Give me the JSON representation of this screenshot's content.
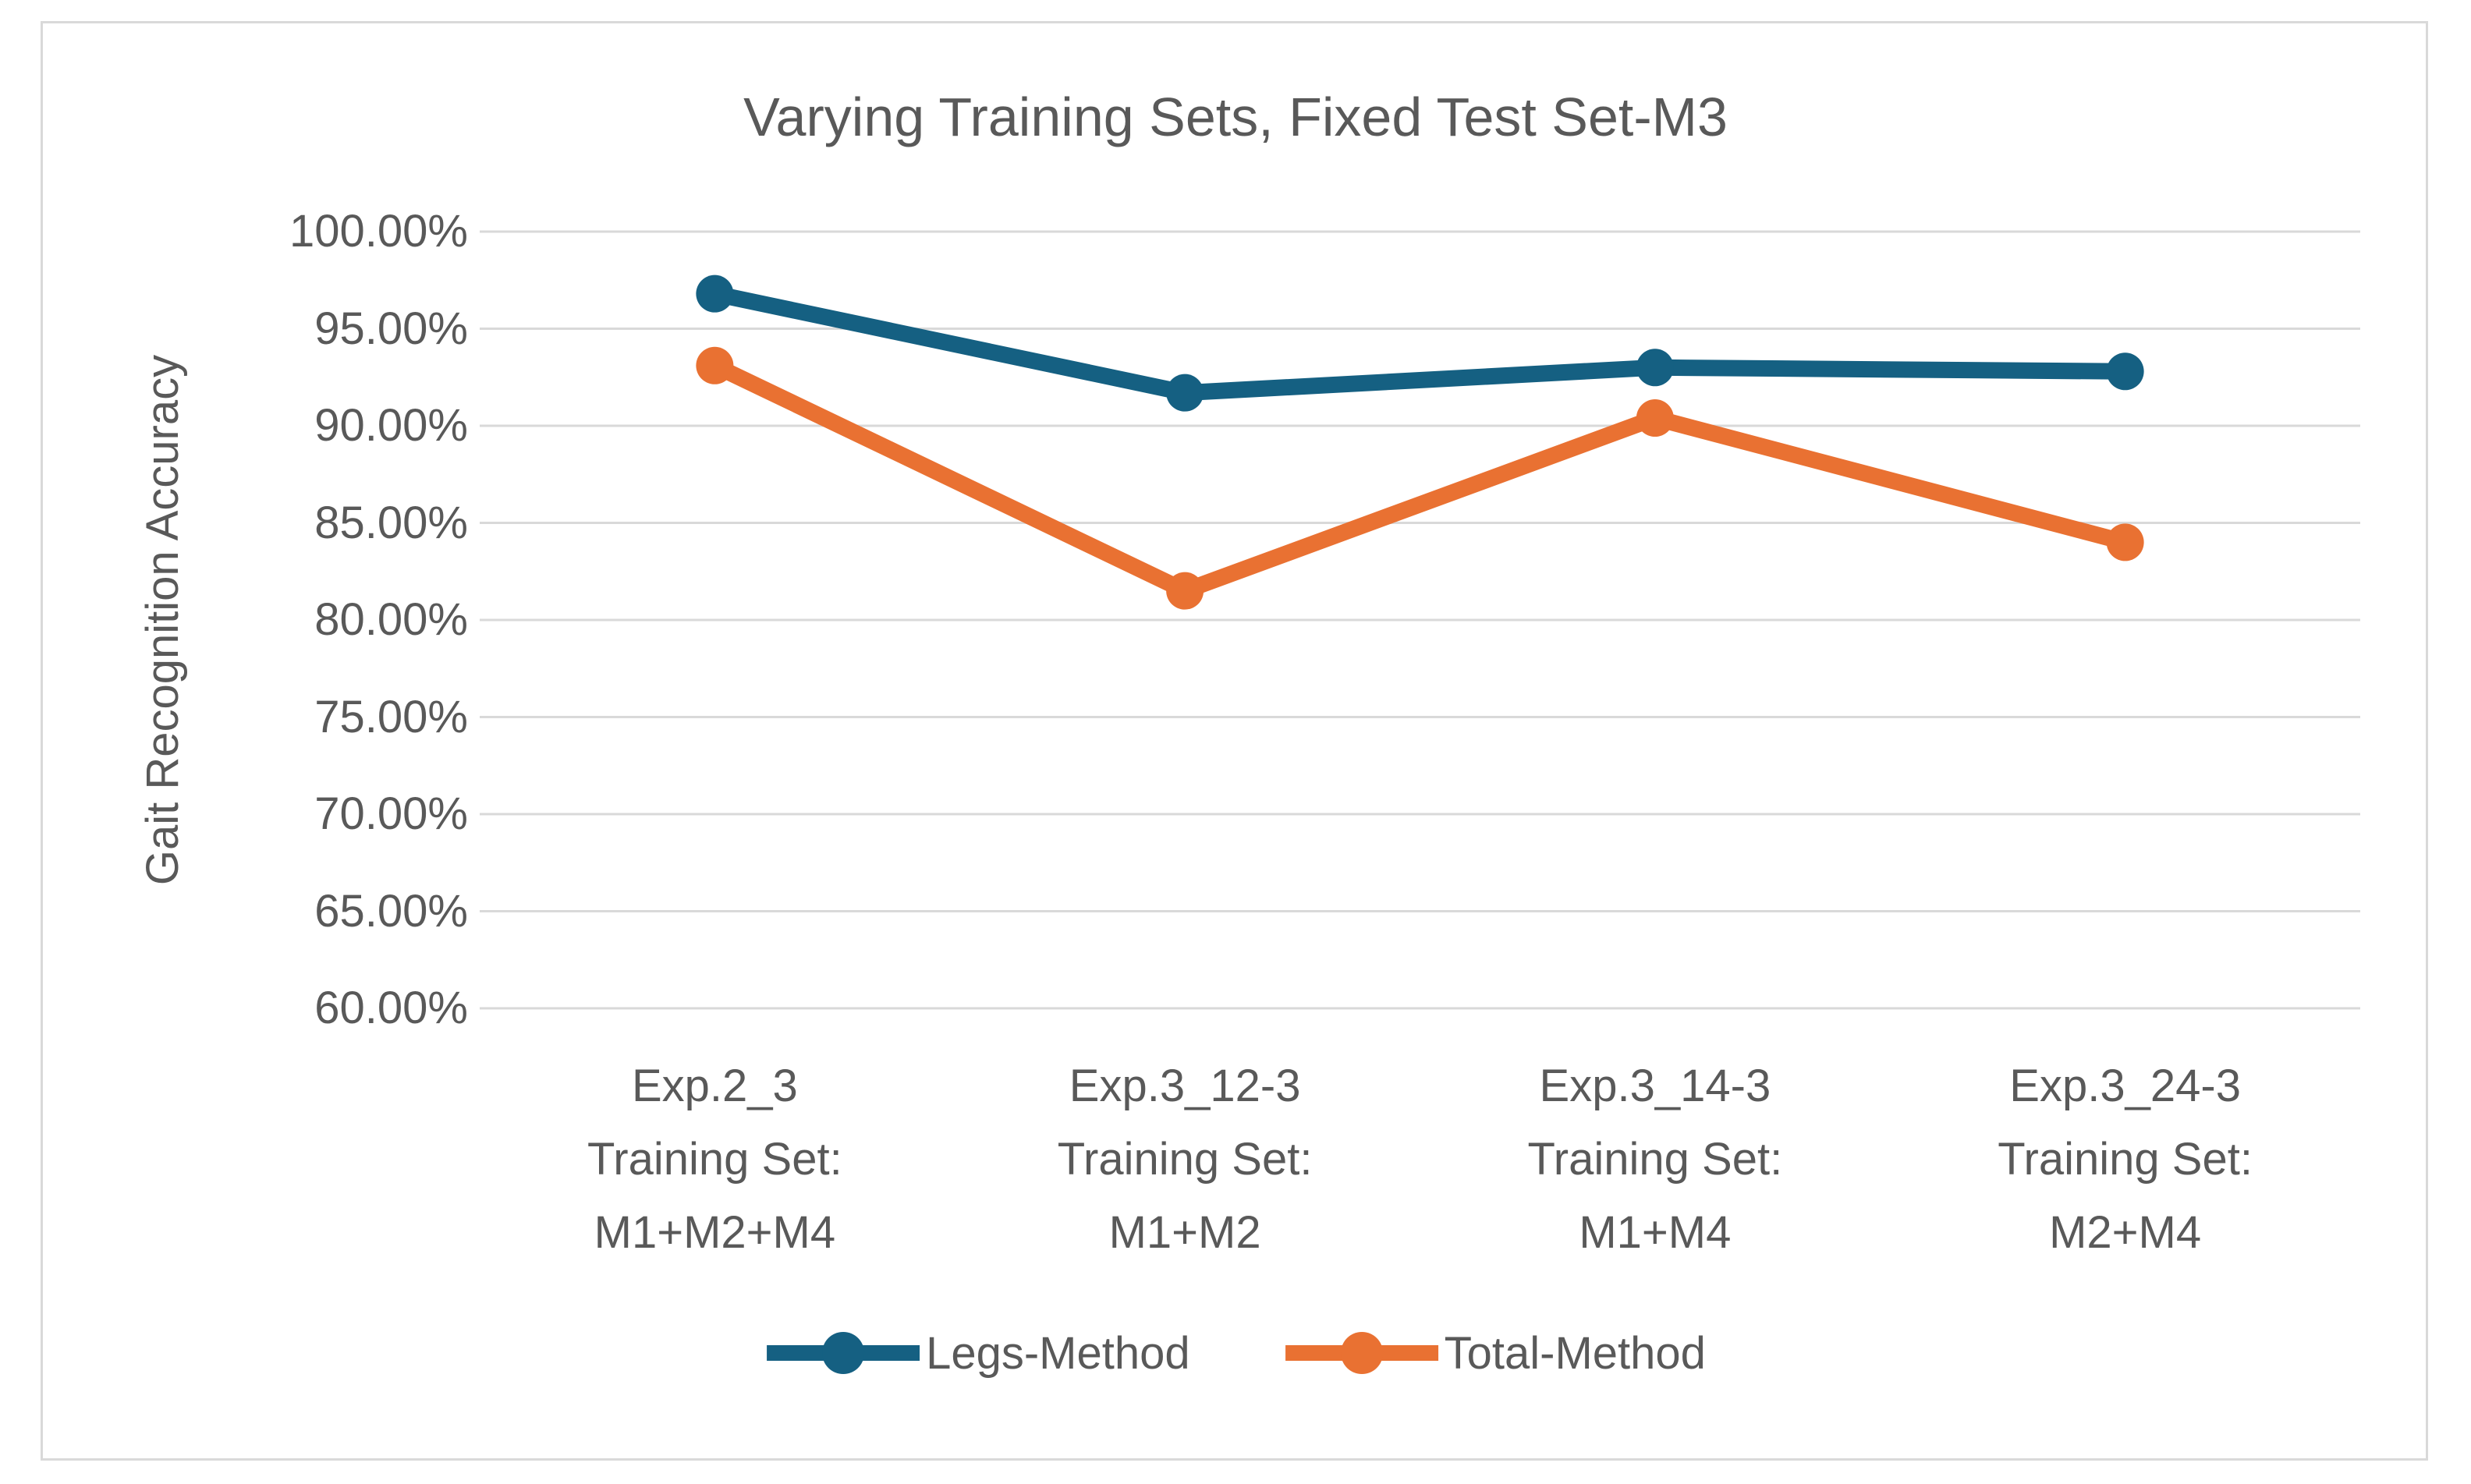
{
  "chart_data": {
    "type": "line",
    "title": "Varying Training Sets, Fixed Test Set-M3",
    "ylabel": "Gait Recognition Accuracy",
    "xlabel": "",
    "categories": [
      "Exp.2_3\nTraining Set:\nM1+M2+M4",
      "Exp.3_12-3\nTraining Set:\nM1+M2",
      "Exp.3_14-3\nTraining Set:\nM1+M4",
      "Exp.3_24-3\nTraining Set:\nM2+M4"
    ],
    "series": [
      {
        "name": "Legs-Method",
        "color": "#156082",
        "values": [
          96.8,
          91.7,
          93.0,
          92.8
        ]
      },
      {
        "name": "Total-Method",
        "color": "#E97132",
        "values": [
          93.1,
          81.5,
          90.4,
          84.0
        ]
      }
    ],
    "y_axis": {
      "min": 60,
      "max": 100,
      "step": 5,
      "tick_labels": [
        "100.00%",
        "95.00%",
        "90.00%",
        "85.00%",
        "80.00%",
        "75.00%",
        "70.00%",
        "65.00%",
        "60.00%"
      ]
    },
    "grid": true,
    "legend_position": "bottom",
    "marker": "circle"
  },
  "styles": {
    "background": "#FFFFFF",
    "text_color": "#595959",
    "gridline_color": "#D9D9D9",
    "frame_border_color": "#D9D9D9"
  }
}
